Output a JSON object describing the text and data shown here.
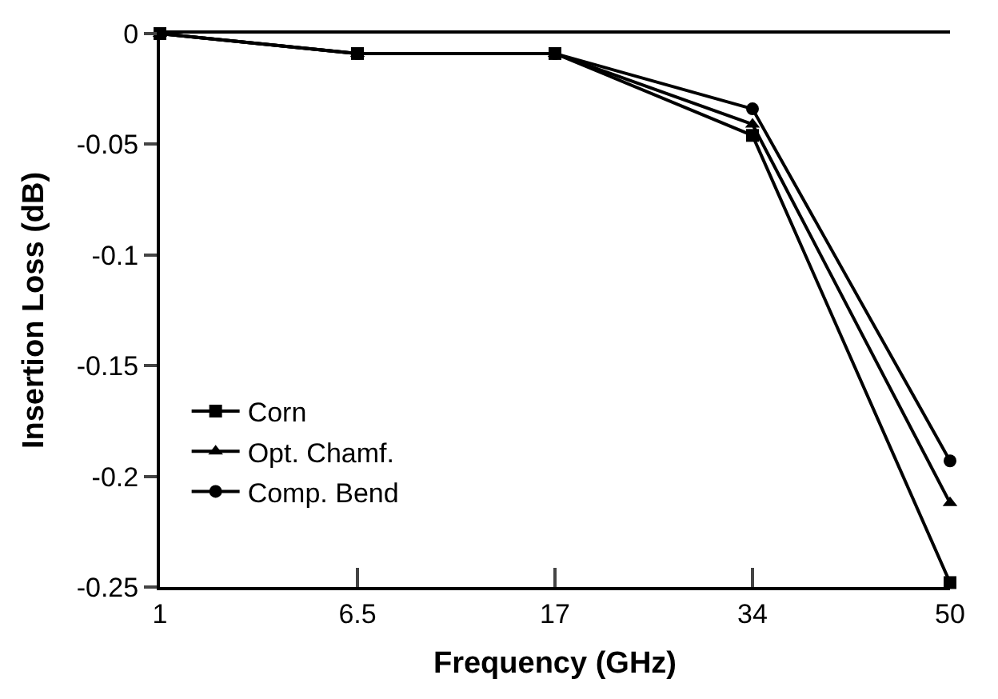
{
  "chart_data": {
    "type": "line",
    "xlabel": "Frequency (GHz)",
    "ylabel": "Insertion Loss (dB)",
    "categories": [
      "1",
      "6.5",
      "17",
      "34",
      "50"
    ],
    "series": [
      {
        "name": "Corn",
        "color": "#000000",
        "marker": "square",
        "values": [
          0,
          -0.009,
          -0.009,
          -0.046,
          -0.248
        ]
      },
      {
        "name": "Opt. Chamf.",
        "color": "#000000",
        "marker": "triangle",
        "values": [
          0,
          -0.009,
          -0.009,
          -0.041,
          -0.212
        ]
      },
      {
        "name": "Comp. Bend",
        "color": "#000000",
        "marker": "circle",
        "values": [
          0,
          -0.009,
          -0.009,
          -0.034,
          -0.193
        ]
      }
    ],
    "ylim": [
      -0.25,
      0
    ],
    "yticks": [
      {
        "value": -0.25,
        "label": "-0.25"
      },
      {
        "value": -0.2,
        "label": "-0.2"
      },
      {
        "value": -0.15,
        "label": "-0.15"
      },
      {
        "value": -0.1,
        "label": "-0.1"
      },
      {
        "value": -0.05,
        "label": "-0.05"
      },
      0
    ],
    "legend": "left",
    "line_style": "solid"
  }
}
